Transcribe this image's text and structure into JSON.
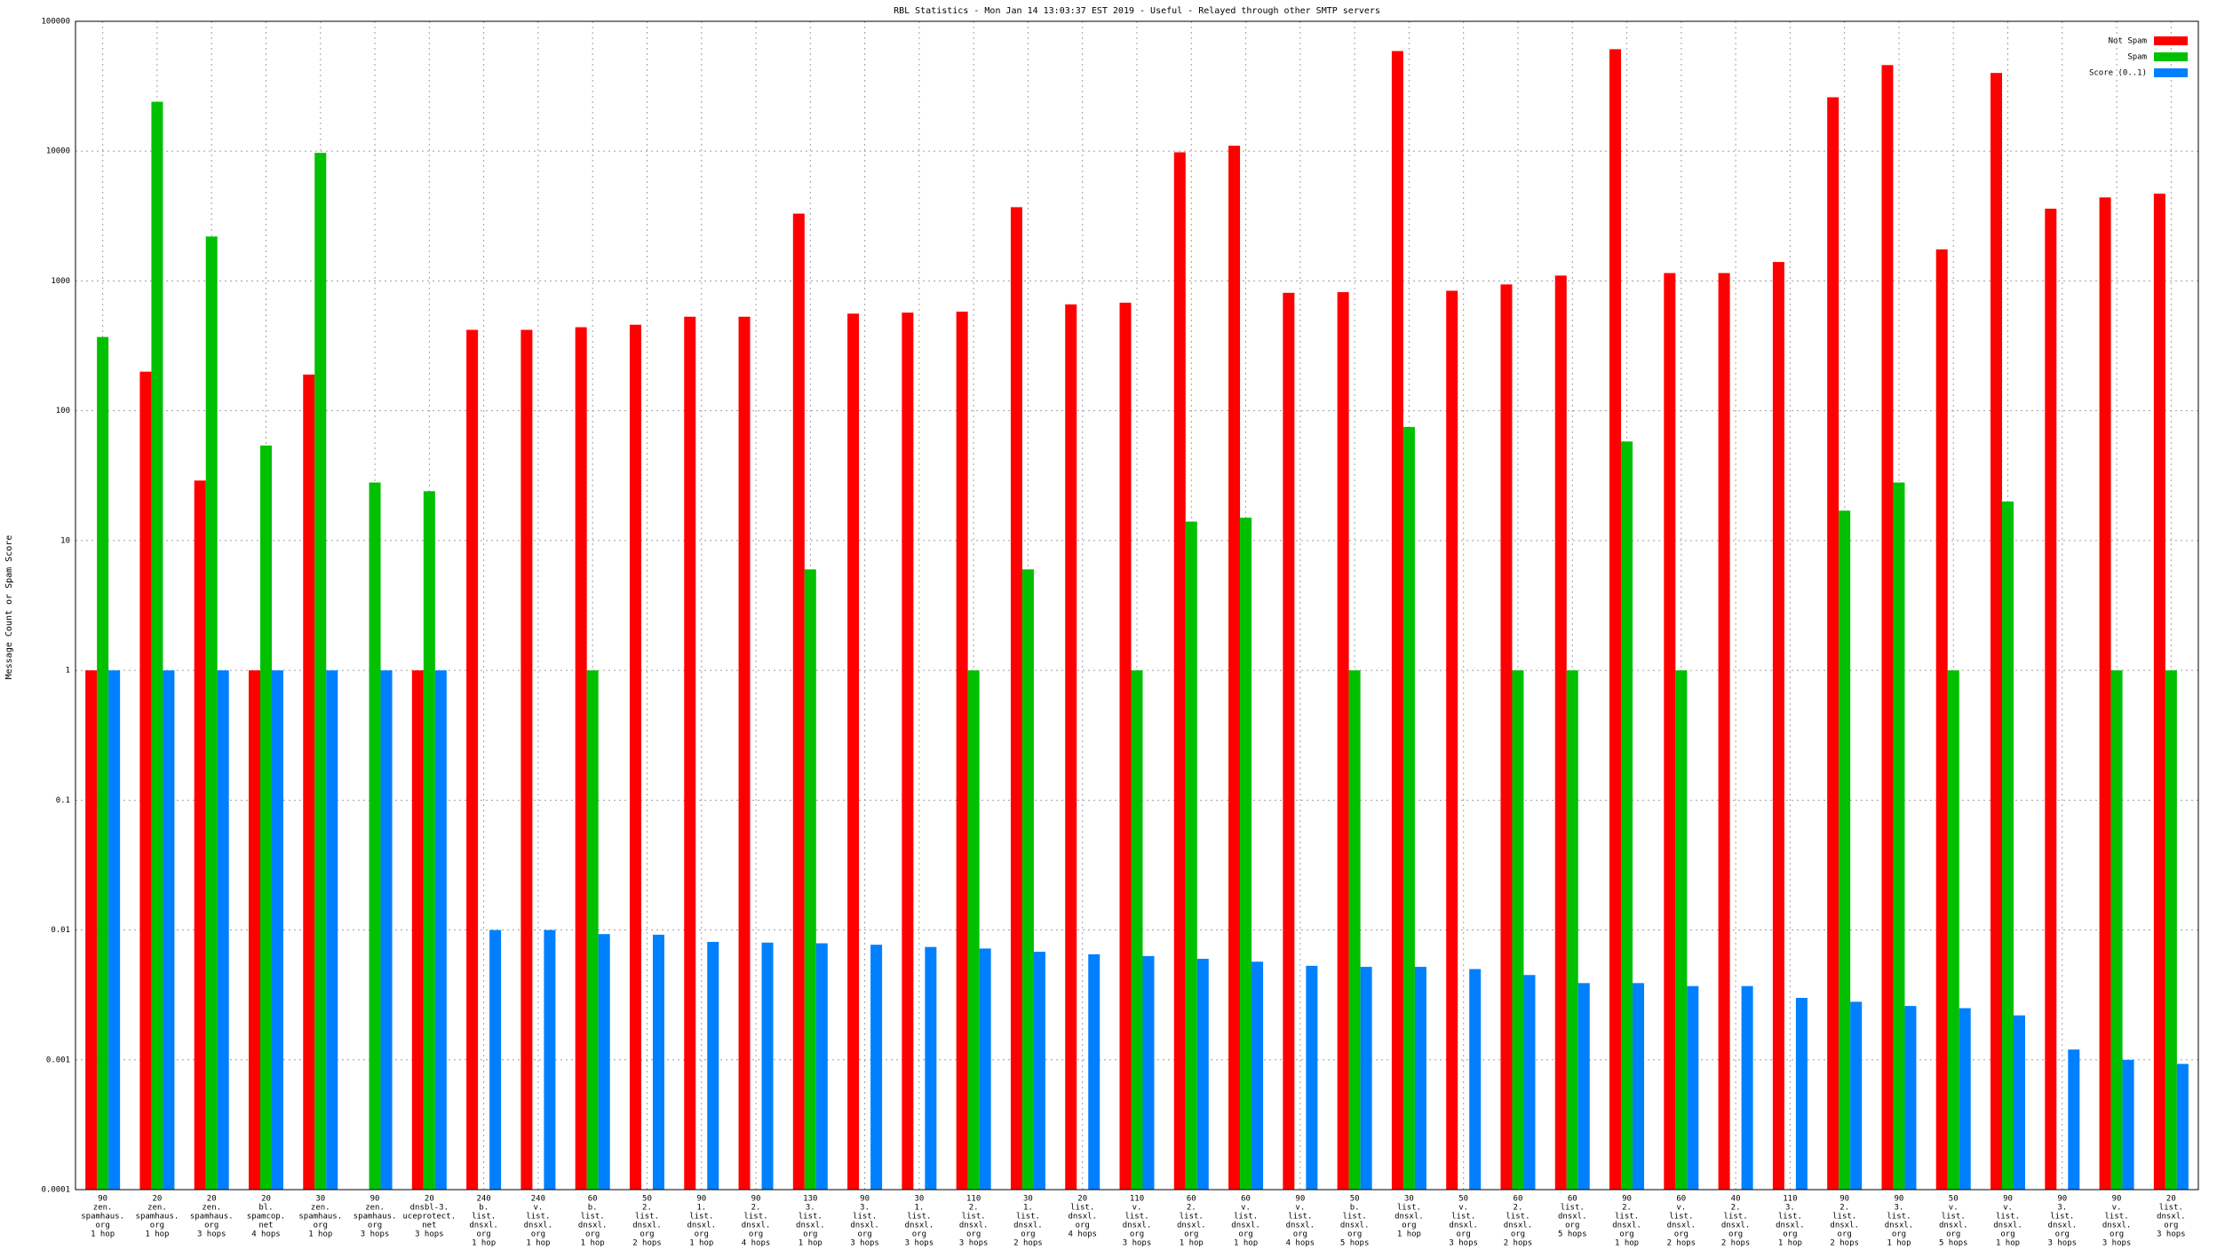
{
  "chart_data": {
    "type": "bar",
    "title": "RBL Statistics - Mon Jan 14 13:03:37 EST 2019 - Useful - Relayed through other SMTP servers",
    "y_label": "Message Count or Spam Score",
    "log_scale": true,
    "grid": true,
    "legend": "top-right",
    "ylim": [
      0.0001,
      100000
    ],
    "yticks": [
      0.0001,
      0.001,
      0.01,
      0.1,
      1,
      10,
      100,
      1000,
      10000,
      100000
    ],
    "categories": [
      [
        "90",
        "zen.",
        "spamhaus.",
        "org",
        "1 hop"
      ],
      [
        "20",
        "zen.",
        "spamhaus.",
        "org",
        "1 hop"
      ],
      [
        "20",
        "zen.",
        "spamhaus.",
        "org",
        "3 hops"
      ],
      [
        "20",
        "bl.",
        "spamcop.",
        "net",
        "4 hops"
      ],
      [
        "30",
        "zen.",
        "spamhaus.",
        "org",
        "1 hop"
      ],
      [
        "90",
        "zen.",
        "spamhaus.",
        "org",
        "3 hops"
      ],
      [
        "20",
        "dnsbl-3.",
        "uceprotect.",
        "net",
        "3 hops"
      ],
      [
        "240",
        "b.",
        "list.",
        "dnsxl.",
        "org",
        "1 hop"
      ],
      [
        "240",
        "v.",
        "list.",
        "dnsxl.",
        "org",
        "1 hop"
      ],
      [
        "60",
        "b.",
        "list.",
        "dnsxl.",
        "org",
        "1 hop"
      ],
      [
        "50",
        "2.",
        "list.",
        "dnsxl.",
        "org",
        "2 hops"
      ],
      [
        "90",
        "1.",
        "list.",
        "dnsxl.",
        "org",
        "1 hop"
      ],
      [
        "90",
        "2.",
        "list.",
        "dnsxl.",
        "org",
        "4 hops"
      ],
      [
        "130",
        "3.",
        "list.",
        "dnsxl.",
        "org",
        "1 hop"
      ],
      [
        "90",
        "3.",
        "list.",
        "dnsxl.",
        "org",
        "3 hops"
      ],
      [
        "30",
        "1.",
        "list.",
        "dnsxl.",
        "org",
        "3 hops"
      ],
      [
        "110",
        "2.",
        "list.",
        "dnsxl.",
        "org",
        "3 hops"
      ],
      [
        "30",
        "1.",
        "list.",
        "dnsxl.",
        "org",
        "2 hops"
      ],
      [
        "20",
        "list.",
        "dnsxl.",
        "org",
        "4 hops"
      ],
      [
        "110",
        "v.",
        "list.",
        "dnsxl.",
        "org",
        "3 hops"
      ],
      [
        "60",
        "2.",
        "list.",
        "dnsxl.",
        "org",
        "1 hop"
      ],
      [
        "60",
        "v.",
        "list.",
        "dnsxl.",
        "org",
        "1 hop"
      ],
      [
        "90",
        "v.",
        "list.",
        "dnsxl.",
        "org",
        "4 hops"
      ],
      [
        "50",
        "b.",
        "list.",
        "dnsxl.",
        "org",
        "5 hops"
      ],
      [
        "30",
        "list.",
        "dnsxl.",
        "org",
        "1 hop"
      ],
      [
        "50",
        "v.",
        "list.",
        "dnsxl.",
        "org",
        "3 hops"
      ],
      [
        "60",
        "2.",
        "list.",
        "dnsxl.",
        "org",
        "2 hops"
      ],
      [
        "60",
        "list.",
        "dnsxl.",
        "org",
        "5 hops"
      ],
      [
        "90",
        "2.",
        "list.",
        "dnsxl.",
        "org",
        "1 hop"
      ],
      [
        "60",
        "v.",
        "list.",
        "dnsxl.",
        "org",
        "2 hops"
      ],
      [
        "40",
        "2.",
        "list.",
        "dnsxl.",
        "org",
        "2 hops"
      ],
      [
        "110",
        "3.",
        "list.",
        "dnsxl.",
        "org",
        "1 hop"
      ],
      [
        "90",
        "2.",
        "list.",
        "dnsxl.",
        "org",
        "2 hops"
      ],
      [
        "90",
        "3.",
        "list.",
        "dnsxl.",
        "org",
        "1 hop"
      ],
      [
        "50",
        "v.",
        "list.",
        "dnsxl.",
        "org",
        "5 hops"
      ],
      [
        "90",
        "v.",
        "list.",
        "dnsxl.",
        "org",
        "1 hop"
      ],
      [
        "90",
        "3.",
        "list.",
        "dnsxl.",
        "org",
        "3 hops"
      ],
      [
        "90",
        "v.",
        "list.",
        "dnsxl.",
        "org",
        "3 hops"
      ],
      [
        "20",
        "list.",
        "dnsxl.",
        "org",
        "3 hops"
      ]
    ],
    "series": [
      {
        "name": "Not Spam",
        "color": "#ff0000",
        "values": [
          1,
          200,
          29,
          1,
          190,
          null,
          1,
          420,
          420,
          440,
          460,
          530,
          530,
          3300,
          560,
          570,
          580,
          3700,
          660,
          680,
          9800,
          11000,
          810,
          820,
          59000,
          840,
          940,
          1100,
          61000,
          1150,
          1150,
          1400,
          26000,
          46000,
          1750,
          40000,
          3600,
          4400,
          4700
        ]
      },
      {
        "name": "Spam",
        "color": "#00c000",
        "values": [
          370,
          24000,
          2200,
          54,
          9700,
          28,
          24,
          null,
          null,
          1,
          null,
          null,
          null,
          6,
          null,
          null,
          1,
          6,
          null,
          1,
          14,
          15,
          null,
          1,
          75,
          null,
          1,
          1,
          58,
          1,
          null,
          null,
          17,
          28,
          1,
          20,
          null,
          1,
          1
        ]
      },
      {
        "name": "Score (0..1)",
        "color": "#0080ff",
        "values": [
          1,
          1,
          1,
          1,
          1,
          1,
          1,
          0.01,
          0.01,
          0.0093,
          0.0092,
          0.0081,
          0.008,
          0.0079,
          0.0077,
          0.0074,
          0.0072,
          0.0068,
          0.0065,
          0.0063,
          0.006,
          0.0057,
          0.0053,
          0.0052,
          0.0052,
          0.005,
          0.0045,
          0.0039,
          0.0039,
          0.0037,
          0.0037,
          0.003,
          0.0028,
          0.0026,
          0.0025,
          0.0022,
          0.0012,
          0.001,
          0.00093
        ]
      }
    ]
  }
}
